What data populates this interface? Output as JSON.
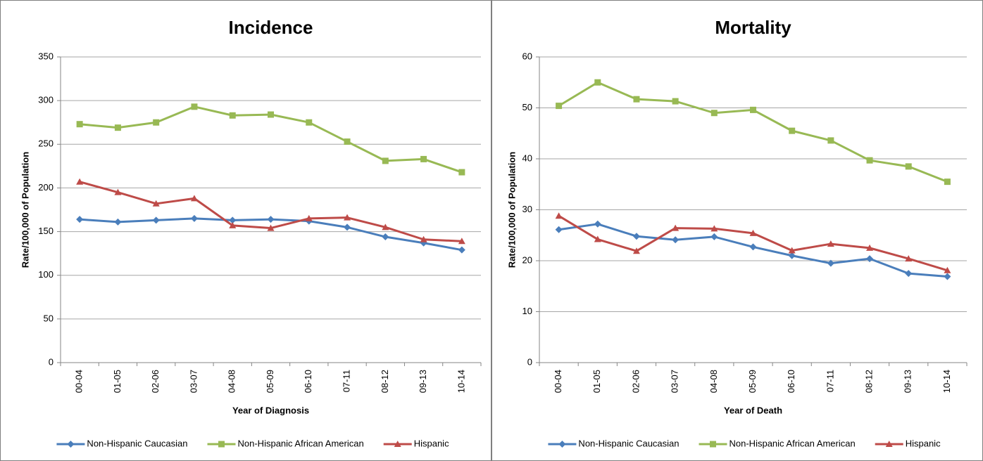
{
  "chart_data": [
    {
      "type": "line",
      "title": "Incidence",
      "x_label": "Year of Diagnosis",
      "y_label": "Rate/100,000 of Population",
      "categories": [
        "00-04",
        "01-05",
        "02-06",
        "03-07",
        "04-08",
        "05-09",
        "06-10",
        "07-11",
        "08-12",
        "09-13",
        "10-14"
      ],
      "ylim": [
        0,
        350
      ],
      "yticks": [
        0,
        50,
        100,
        150,
        200,
        250,
        300,
        350
      ],
      "grid": true,
      "legend": "bottom",
      "series": [
        {
          "name": "Non-Hispanic Caucasian",
          "color": "#4a7ebb",
          "marker": "diamond",
          "values": [
            164,
            161,
            163,
            165,
            163,
            164,
            162,
            155,
            144,
            137,
            129
          ]
        },
        {
          "name": "Non-Hispanic African American",
          "color": "#98b954",
          "marker": "square",
          "values": [
            273,
            269,
            275,
            293,
            283,
            284,
            275,
            253,
            231,
            233,
            218
          ]
        },
        {
          "name": "Hispanic",
          "color": "#be4b48",
          "marker": "triangle",
          "values": [
            207,
            195,
            182,
            188,
            157,
            154,
            165,
            166,
            155,
            141,
            139
          ]
        }
      ]
    },
    {
      "type": "line",
      "title": "Mortality",
      "x_label": "Year of Death",
      "y_label": "Rate/100,000 of Population",
      "categories": [
        "00-04",
        "01-05",
        "02-06",
        "03-07",
        "04-08",
        "05-09",
        "06-10",
        "07-11",
        "08-12",
        "09-13",
        "10-14"
      ],
      "ylim": [
        0,
        60
      ],
      "yticks": [
        0,
        10,
        20,
        30,
        40,
        50,
        60
      ],
      "grid": true,
      "legend": "bottom",
      "series": [
        {
          "name": "Non-Hispanic Caucasian",
          "color": "#4a7ebb",
          "marker": "diamond",
          "values": [
            26.1,
            27.2,
            24.8,
            24.1,
            24.7,
            22.7,
            21,
            19.5,
            20.4,
            17.5,
            16.9
          ]
        },
        {
          "name": "Non-Hispanic African American",
          "color": "#98b954",
          "marker": "square",
          "values": [
            50.4,
            55,
            51.7,
            51.3,
            49,
            49.6,
            45.5,
            43.6,
            39.7,
            38.5,
            35.5
          ]
        },
        {
          "name": "Hispanic",
          "color": "#be4b48",
          "marker": "triangle",
          "values": [
            28.8,
            24.2,
            21.9,
            26.4,
            26.3,
            25.4,
            22,
            23.3,
            22.5,
            20.4,
            18.1
          ]
        }
      ]
    }
  ]
}
